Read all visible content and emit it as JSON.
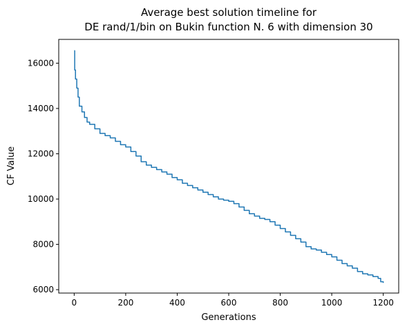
{
  "chart_data": {
    "type": "line",
    "title_line1": "Average best solution timeline for",
    "title_line2": "DE rand/1/bin on Bukin function N. 6 with dimension 30",
    "xlabel": "Generations",
    "ylabel": "CF Value",
    "xlim": [
      -60,
      1260
    ],
    "ylim": [
      5850,
      17050
    ],
    "xticks": [
      0,
      200,
      400,
      600,
      800,
      1000,
      1200
    ],
    "yticks": [
      6000,
      8000,
      10000,
      12000,
      14000,
      16000
    ],
    "xtick_labels": [
      "0",
      "200",
      "400",
      "600",
      "800",
      "1000",
      "1200"
    ],
    "ytick_labels": [
      "6000",
      "8000",
      "10000",
      "12000",
      "14000",
      "16000"
    ],
    "grid": false,
    "series": [
      {
        "color": "#1f77b4",
        "x": [
          0,
          2,
          5,
          10,
          15,
          20,
          30,
          40,
          50,
          60,
          80,
          100,
          120,
          140,
          160,
          180,
          200,
          220,
          240,
          260,
          280,
          300,
          320,
          340,
          360,
          380,
          400,
          420,
          440,
          460,
          480,
          500,
          520,
          540,
          560,
          580,
          600,
          620,
          640,
          660,
          680,
          700,
          720,
          740,
          760,
          780,
          800,
          820,
          840,
          860,
          880,
          900,
          920,
          940,
          960,
          980,
          1000,
          1020,
          1040,
          1060,
          1080,
          1100,
          1120,
          1140,
          1160,
          1180,
          1190,
          1200
        ],
        "y": [
          16550,
          15700,
          15300,
          14900,
          14500,
          14100,
          13850,
          13600,
          13400,
          13300,
          13100,
          12900,
          12800,
          12700,
          12550,
          12400,
          12300,
          12100,
          11900,
          11650,
          11500,
          11400,
          11300,
          11200,
          11100,
          10950,
          10850,
          10700,
          10600,
          10500,
          10400,
          10300,
          10200,
          10100,
          10000,
          9950,
          9900,
          9800,
          9650,
          9500,
          9350,
          9250,
          9150,
          9100,
          9000,
          8850,
          8700,
          8550,
          8400,
          8250,
          8100,
          7900,
          7800,
          7750,
          7650,
          7550,
          7450,
          7300,
          7150,
          7050,
          6950,
          6800,
          6700,
          6650,
          6580,
          6500,
          6350,
          6300
        ]
      }
    ]
  }
}
